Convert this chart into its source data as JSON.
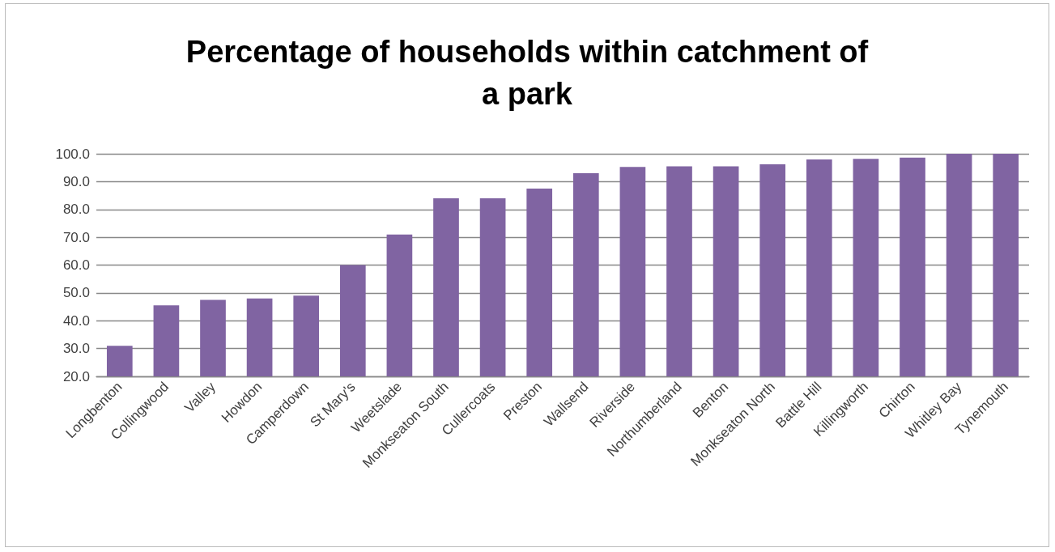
{
  "chart_data": {
    "type": "bar",
    "title": "Percentage of households within catchment of\na park",
    "categories": [
      "Longbenton",
      "Collingwood",
      "Valley",
      "Howdon",
      "Camperdown",
      "St Mary's",
      "Weetslade",
      "Monkseaton South",
      "Cullercoats",
      "Preston",
      "Wallsend",
      "Riverside",
      "Northumberland",
      "Benton",
      "Monkseaton North",
      "Battle Hill",
      "Killingworth",
      "Chirton",
      "Whitley Bay",
      "Tynemouth"
    ],
    "values": [
      31,
      45.5,
      47.5,
      48,
      49,
      60,
      71,
      84,
      84,
      87.5,
      93,
      95.3,
      95.5,
      95.5,
      96.2,
      98,
      98.2,
      98.6,
      100,
      100
    ],
    "color": "#8064a2",
    "ylim": [
      20,
      100
    ],
    "yticks": [
      {
        "value": 20,
        "label": "20.0"
      },
      {
        "value": 30,
        "label": "30.0"
      },
      {
        "value": 40,
        "label": "40.0"
      },
      {
        "value": 50,
        "label": "50.0"
      },
      {
        "value": 60,
        "label": "60.0"
      },
      {
        "value": 70,
        "label": "70.0"
      },
      {
        "value": 80,
        "label": "80.0"
      },
      {
        "value": 90,
        "label": "90.0"
      },
      {
        "value": 100,
        "label": "100.0"
      }
    ],
    "grid": true
  }
}
